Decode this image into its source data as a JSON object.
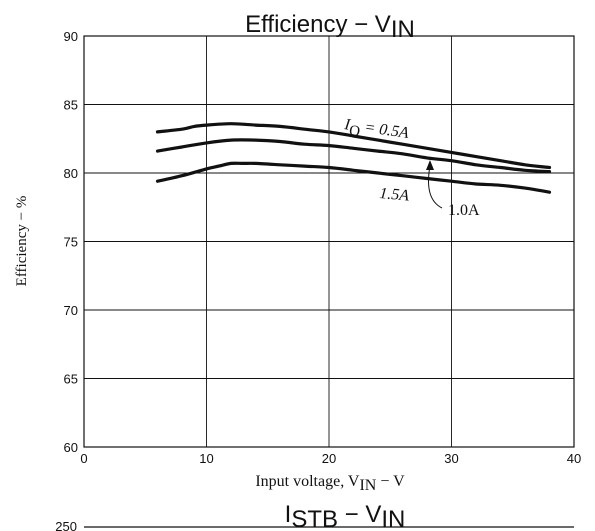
{
  "chart_data": [
    {
      "type": "line",
      "title": "Efficiency − V",
      "title_sub": "IN",
      "xlabel": "Input voltage, V",
      "xlabel_sub": "IN",
      "xlabel_suffix": " − V",
      "ylabel": "Efficiency − %",
      "xlim": [
        0,
        40
      ],
      "ylim": [
        60,
        90
      ],
      "xticks": [
        0,
        10,
        20,
        30,
        40
      ],
      "yticks": [
        60,
        65,
        70,
        75,
        80,
        85,
        90
      ],
      "grid": true,
      "series": [
        {
          "name": "I",
          "name_sub": "O",
          "name_suffix": " = 0.5A",
          "x": [
            6,
            8,
            9,
            10,
            12,
            14,
            16,
            18,
            20,
            22,
            24,
            26,
            28,
            30,
            32,
            34,
            36,
            38
          ],
          "y": [
            83.0,
            83.2,
            83.4,
            83.5,
            83.6,
            83.5,
            83.4,
            83.2,
            83.0,
            82.7,
            82.4,
            82.1,
            81.8,
            81.5,
            81.2,
            80.9,
            80.6,
            80.4
          ]
        },
        {
          "name": "1.0A",
          "x": [
            6,
            8,
            10,
            12,
            14,
            16,
            18,
            20,
            22,
            24,
            26,
            28,
            30,
            32,
            34,
            36,
            38
          ],
          "y": [
            81.6,
            81.9,
            82.2,
            82.4,
            82.4,
            82.3,
            82.1,
            82.0,
            81.8,
            81.6,
            81.4,
            81.1,
            80.9,
            80.6,
            80.4,
            80.2,
            80.1
          ]
        },
        {
          "name": "1.5A",
          "x": [
            6,
            8,
            10,
            11,
            12,
            13,
            14,
            16,
            18,
            20,
            22,
            24,
            26,
            28,
            30,
            32,
            34,
            36,
            38
          ],
          "y": [
            79.4,
            79.8,
            80.3,
            80.5,
            80.7,
            80.7,
            80.7,
            80.6,
            80.5,
            80.4,
            80.2,
            80.0,
            79.8,
            79.6,
            79.4,
            79.2,
            79.1,
            78.9,
            78.6
          ]
        }
      ]
    },
    {
      "type": "line",
      "title": "I",
      "title_sub": "STB",
      "title_suffix": " − V",
      "title_sub2": "IN",
      "yticks": [
        250
      ]
    }
  ]
}
